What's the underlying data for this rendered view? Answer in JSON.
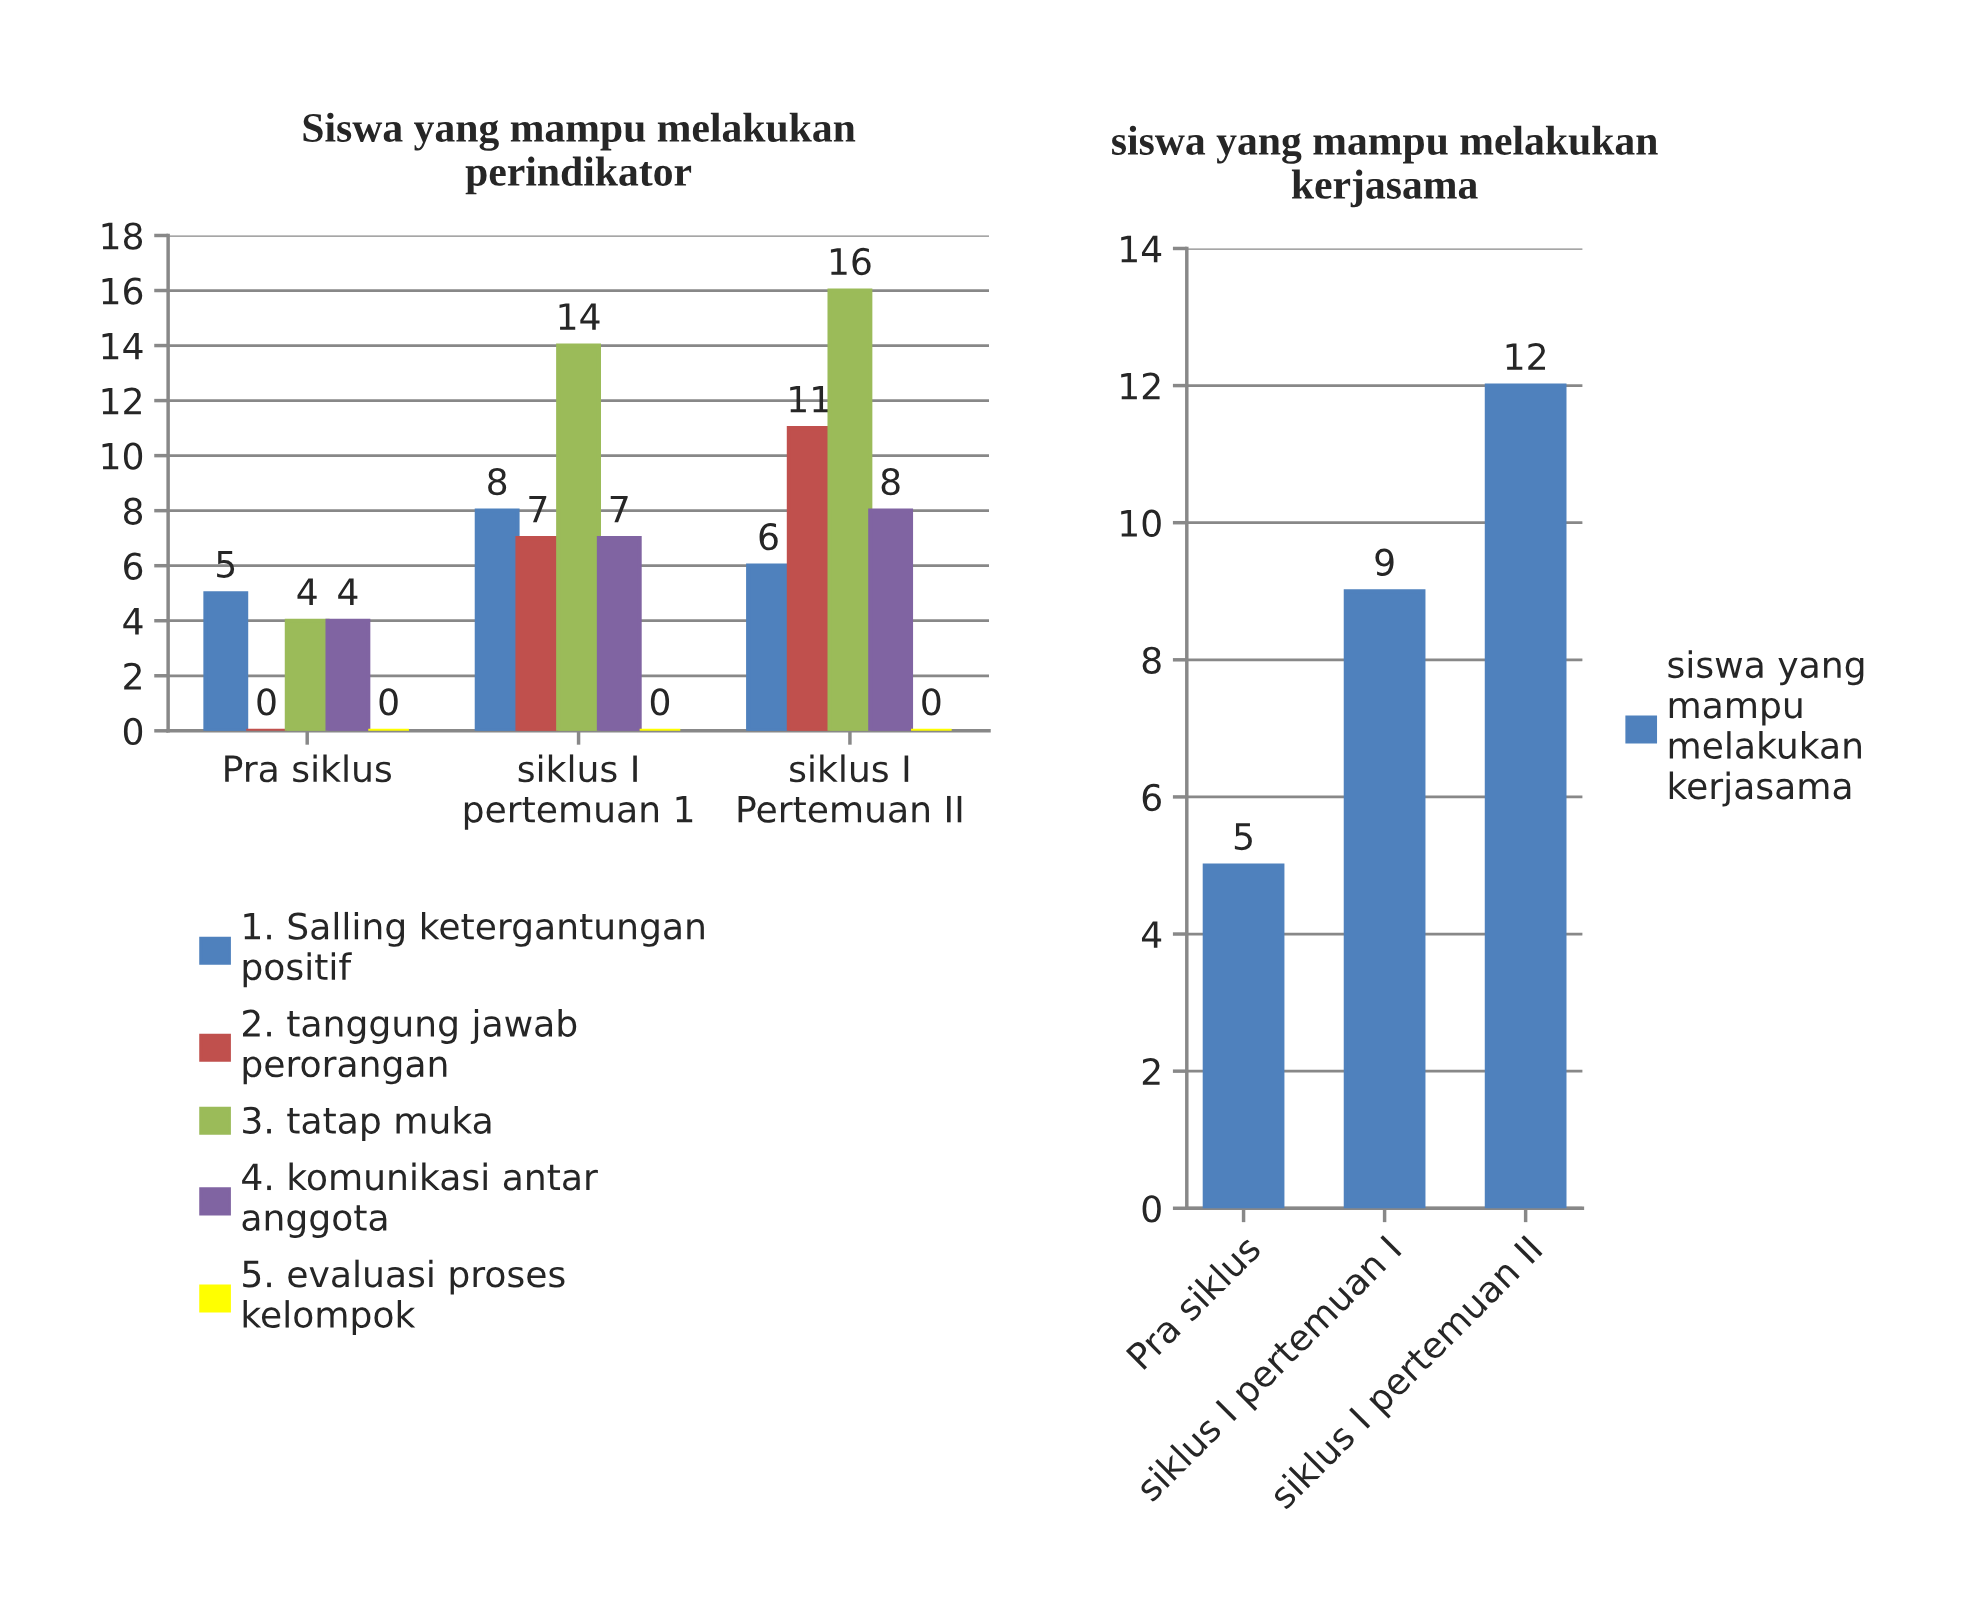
{
  "chart_data": [
    {
      "type": "bar",
      "title": "Siswa yang mampu melakukan perindikator",
      "categories": [
        "Pra siklus",
        "siklus I pertemuan 1",
        "siklus I Pertemuan II"
      ],
      "series": [
        {
          "name": "1. Salling ketergantungan positif",
          "color": "#4f81bd",
          "values": [
            5,
            8,
            6
          ]
        },
        {
          "name": "2. tanggung jawab perorangan",
          "color": "#c0504d",
          "values": [
            0,
            7,
            11
          ]
        },
        {
          "name": "3. tatap muka",
          "color": "#9bbb59",
          "values": [
            4,
            14,
            16
          ]
        },
        {
          "name": "4. komunikasi antar anggota",
          "color": "#8064a2",
          "values": [
            4,
            7,
            8
          ]
        },
        {
          "name": "5. evaluasi proses kelompok",
          "color": "#ffff00",
          "values": [
            0,
            0,
            0
          ]
        }
      ],
      "ylim": [
        0,
        18
      ],
      "yticks": [
        0,
        2,
        4,
        6,
        8,
        10,
        12,
        14,
        16,
        18
      ],
      "grid": "y",
      "legend": "bottom",
      "data_labels": true
    },
    {
      "type": "bar",
      "title": "siswa yang mampu melakukan kerjasama",
      "categories": [
        "Pra siklus",
        "siklus I pertemuan I",
        "siklus I pertemuan II"
      ],
      "series": [
        {
          "name": "siswa yang mampu melakukan kerjasama",
          "color": "#4f81bd",
          "values": [
            5,
            9,
            12
          ]
        }
      ],
      "ylim": [
        0,
        14
      ],
      "yticks": [
        0,
        2,
        4,
        6,
        8,
        10,
        12,
        14
      ],
      "grid": "y",
      "legend": "right",
      "data_labels": true
    }
  ]
}
